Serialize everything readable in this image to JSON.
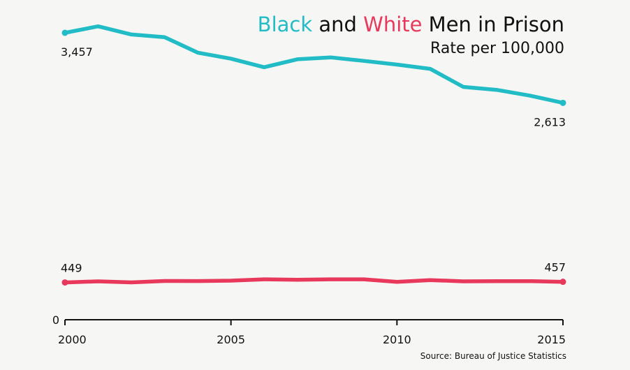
{
  "chart_data": {
    "type": "line",
    "title_parts": [
      {
        "text": "Black",
        "color": "#21bcc6"
      },
      {
        "text": " and ",
        "color": "#111111"
      },
      {
        "text": "White",
        "color": "#e8395d"
      },
      {
        "text": " Men in Prison",
        "color": "#111111"
      }
    ],
    "subtitle": "Rate per 100,000",
    "source": "Source: Bureau of Justice Statistics",
    "x": [
      2000,
      2001,
      2002,
      2003,
      2004,
      2005,
      2006,
      2007,
      2008,
      2009,
      2010,
      2011,
      2012,
      2013,
      2014,
      2015
    ],
    "xlim": [
      2000,
      2015
    ],
    "ylim": [
      0,
      3600
    ],
    "x_ticks": [
      "2000",
      "2005",
      "2010",
      "2015"
    ],
    "y_ticks": [
      "0"
    ],
    "series": [
      {
        "color": "#21bcc6",
        "values": [
          3457,
          3535,
          3437,
          3405,
          3218,
          3145,
          3042,
          3138,
          3161,
          3119,
          3074,
          3023,
          2805,
          2770,
          2701,
          2613
        ],
        "start_label": "3,457",
        "end_label": "2,613"
      },
      {
        "color": "#e8395d",
        "values": [
          449,
          463,
          450,
          467,
          466,
          471,
          487,
          481,
          487,
          487,
          456,
          478,
          463,
          465,
          465,
          457
        ],
        "start_label": "449",
        "end_label": "457"
      }
    ]
  }
}
